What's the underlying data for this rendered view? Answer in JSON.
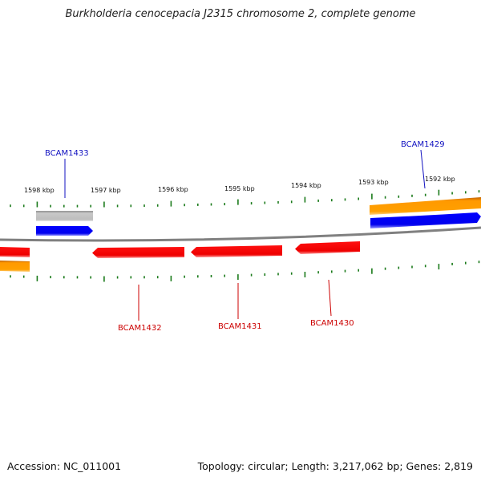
{
  "title": "Burkholderia cenocepacia J2315 chromosome 2, complete genome",
  "footer": {
    "accession": "Accession: NC_011001",
    "topology": "Topology: circular; Length: 3,217,062 bp; Genes: 2,819"
  },
  "colors": {
    "backbone": "#7a7a7a",
    "tick": "#1a7a1a",
    "forward_gene": "#0000ee",
    "reverse_gene": "#ee0000",
    "rna_orange": "#ff9900",
    "pseudo_grey": "#bbbbbb",
    "forward_label": "#1010c0",
    "reverse_label": "#cc0000"
  },
  "scale_ticks": [
    {
      "label": "1598 kbp"
    },
    {
      "label": "1597 kbp"
    },
    {
      "label": "1596 kbp"
    },
    {
      "label": "1595 kbp"
    },
    {
      "label": "1594 kbp"
    },
    {
      "label": "1593 kbp"
    },
    {
      "label": "1592 kbp"
    }
  ],
  "genes": [
    {
      "name": "BCAM1433",
      "strand": "forward"
    },
    {
      "name": "BCAM1429",
      "strand": "forward"
    },
    {
      "name": "BCAM1432",
      "strand": "reverse"
    },
    {
      "name": "BCAM1431",
      "strand": "reverse"
    },
    {
      "name": "BCAM1430",
      "strand": "reverse"
    }
  ]
}
